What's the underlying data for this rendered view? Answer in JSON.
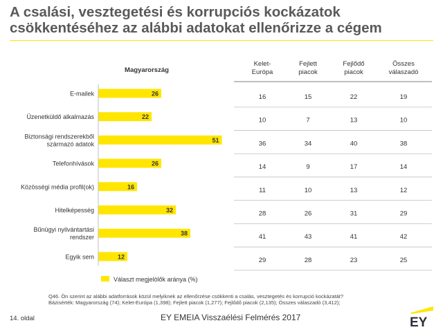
{
  "title": "A csalási, vesztegetési és korrupciós kockázatok csökkentéséhez az alábbi adatokat ellenőrizze a cégem",
  "chart_data": {
    "type": "bar",
    "orientation": "horizontal",
    "title": "Magyarország",
    "categories": [
      [
        "E-mailek"
      ],
      [
        "Üzenetküldő alkalmazás"
      ],
      [
        "Biztonsági rendszerekből",
        "származó adatok"
      ],
      [
        "Telefonhívások"
      ],
      [
        "Közösségi média profil(ok)"
      ],
      [
        "Hitelképesség"
      ],
      [
        "Bűnügyi nyilvántartási",
        "rendszer"
      ],
      [
        "Egyik sem"
      ]
    ],
    "values": [
      26,
      22,
      51,
      26,
      16,
      32,
      38,
      12
    ],
    "xlim": [
      0,
      60
    ],
    "bar_color": "#ffe600",
    "legend": "Választ megjelölők aránya (%)",
    "legend_placement": "bottom"
  },
  "table": {
    "columns": [
      [
        "Kelet-",
        "Európa"
      ],
      [
        "Fejlett",
        "piacok"
      ],
      [
        "Fejlődő",
        "piacok"
      ],
      [
        "Összes",
        "válaszadó"
      ]
    ],
    "rows": [
      [
        "16",
        "15",
        "22",
        "19"
      ],
      [
        "10",
        "7",
        "13",
        "10"
      ],
      [
        "36",
        "34",
        "40",
        "38"
      ],
      [
        "14",
        "9",
        "17",
        "14"
      ],
      [
        "11",
        "10",
        "13",
        "12"
      ],
      [
        "28",
        "26",
        "31",
        "29"
      ],
      [
        "41",
        "43",
        "41",
        "42"
      ],
      [
        "29",
        "28",
        "23",
        "25"
      ]
    ]
  },
  "footnote": {
    "question": "Q46.  Ön szerint az alábbi adatforrások közül melyiknek az ellenőrzése csökkenti a csalás, vesztegetés és korrupció kockázatát?",
    "base": "Bázisérték: Magyarország (74); Kelet-Európa (1,398); Fejlett piacok (1,277); Fejlődő piacok (2,135); Összes válaszadó (3,412);"
  },
  "footer": {
    "page": "14. oldal",
    "text": "EY EMEIA Visszaélési Felmérés 2017",
    "logo": "EY"
  },
  "colors": {
    "accent": "#ffe600",
    "title": "#595959",
    "logo": "#2e2e38"
  }
}
